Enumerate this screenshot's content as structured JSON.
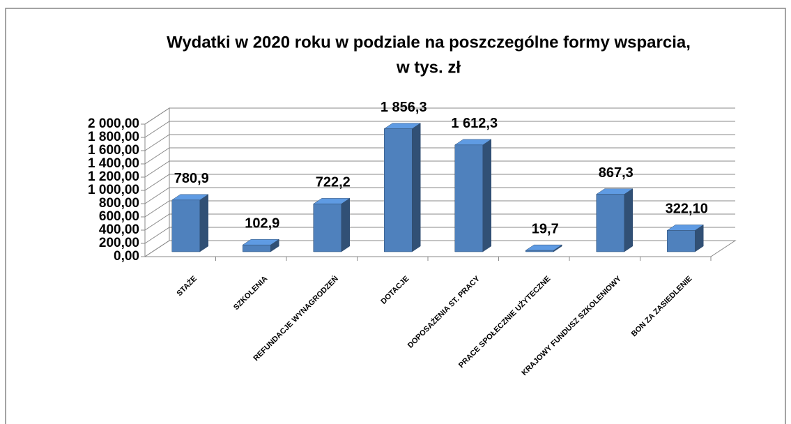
{
  "chart_data": {
    "type": "bar3d",
    "title": [
      "Wydatki  w 2020 roku w podziale na poszczególne formy wsparcia,",
      "w tys. zł"
    ],
    "categories": [
      "STAŻE",
      "SZKOLENIA",
      "REFUNDACJE WYNAGRODZEŃ",
      "DOTACJE",
      "DOPOSAŻENIA ST. PRACY",
      "PRACE SPOŁECZNIE UŻYTECZNE",
      "KRAJOWY FUNDUSZ SZKOLENIOWY",
      "BON ZA ZASIEDLENIE"
    ],
    "values": [
      780.9,
      102.9,
      722.2,
      1856.3,
      1612.3,
      19.7,
      867.3,
      322.1
    ],
    "value_labels": [
      "780,9",
      "102,9",
      "722,2",
      "1 856,3",
      "1 612,3",
      "19,7",
      "867,3",
      "322,10"
    ],
    "color": "#4f81bd",
    "ylim": [
      0,
      2000
    ],
    "yticks": [
      {
        "value": 0,
        "label": "0,00"
      },
      {
        "value": 200,
        "label": "200,00"
      },
      {
        "value": 400,
        "label": "400,00"
      },
      {
        "value": 600,
        "label": "600,00"
      },
      {
        "value": 800,
        "label": "800,00"
      },
      {
        "value": 1000,
        "label": "1 000,00"
      },
      {
        "value": 1200,
        "label": "1 200,00"
      },
      {
        "value": 1400,
        "label": "1 400,00"
      },
      {
        "value": 1600,
        "label": "1 600,00"
      },
      {
        "value": 1800,
        "label": "1 800,00"
      },
      {
        "value": 2000,
        "label": "2 000,00"
      }
    ],
    "grid": true
  }
}
